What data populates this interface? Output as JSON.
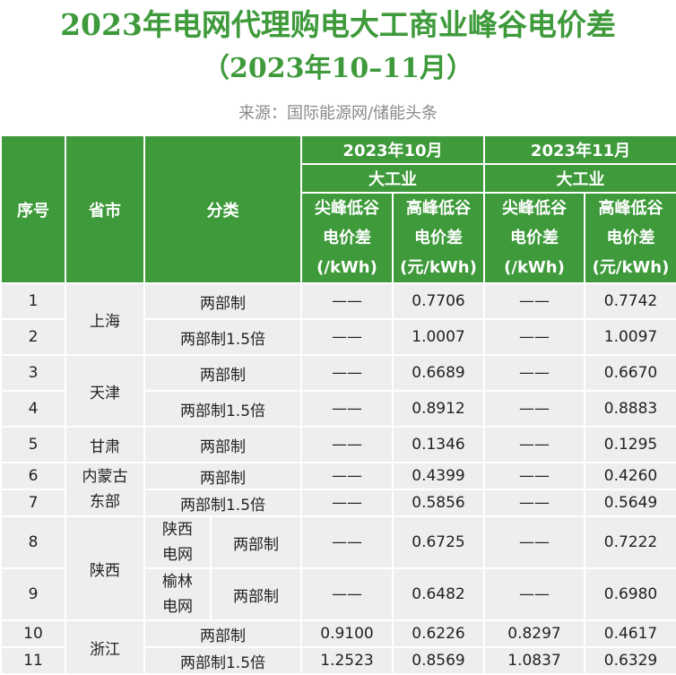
{
  "title": "2023年电网代理购电大工商业峰谷电价差",
  "subtitle": "（2023年10–11月）",
  "source": "来源：国际能源网/储能头条",
  "header": {
    "seq": "序号",
    "province": "省市",
    "category": "分类",
    "oct_month": "2023年10月",
    "nov_month": "2023年11月",
    "industry": "大工业",
    "peak_top": [
      "尖峰低谷",
      "电价差",
      "(/kWh)"
    ],
    "peak_high": [
      "高峰低谷",
      "电价差",
      "(元/kWh)"
    ]
  },
  "provinces": {
    "shanghai": "上海",
    "tianjin": "天津",
    "gansu": "甘肃",
    "neimenggu": "内蒙古",
    "dongbu": "东部",
    "shaanxi": "陕西",
    "zhejiang": "浙江"
  },
  "sub_regions": {
    "shaanxi_grid": [
      "陕西",
      "电网"
    ],
    "yulin_grid": [
      "榆林",
      "电网"
    ]
  },
  "rows": [
    {
      "no": "1",
      "category": "两部制",
      "oct_top": "——",
      "oct_high": "0.7706",
      "nov_top": "——",
      "nov_high": "0.7742"
    },
    {
      "no": "2",
      "category": "两部制1.5倍",
      "oct_top": "——",
      "oct_high": "1.0007",
      "nov_top": "——",
      "nov_high": "1.0097"
    },
    {
      "no": "3",
      "category": "两部制",
      "oct_top": "——",
      "oct_high": "0.6689",
      "nov_top": "——",
      "nov_high": "0.6670"
    },
    {
      "no": "4",
      "category": "两部制1.5倍",
      "oct_top": "——",
      "oct_high": "0.8912",
      "nov_top": "——",
      "nov_high": "0.8883"
    },
    {
      "no": "5",
      "category": "两部制",
      "oct_top": "——",
      "oct_high": "0.1346",
      "nov_top": "——",
      "nov_high": "0.1295"
    },
    {
      "no": "6",
      "category": "两部制",
      "oct_top": "——",
      "oct_high": "0.4399",
      "nov_top": "——",
      "nov_high": "0.4260"
    },
    {
      "no": "7",
      "category": "两部制1.5倍",
      "oct_top": "——",
      "oct_high": "0.5856",
      "nov_top": "——",
      "nov_high": "0.5649"
    },
    {
      "no": "8",
      "category": "两部制",
      "oct_top": "——",
      "oct_high": "0.6725",
      "nov_top": "——",
      "nov_high": "0.7222"
    },
    {
      "no": "9",
      "category": "两部制",
      "oct_top": "——",
      "oct_high": "0.6482",
      "nov_top": "——",
      "nov_high": "0.6980"
    },
    {
      "no": "10",
      "category": "两部制",
      "oct_top": "0.9100",
      "oct_high": "0.6226",
      "nov_top": "0.8297",
      "nov_high": "0.4617"
    },
    {
      "no": "11",
      "category": "两部制1.5倍",
      "oct_top": "1.2523",
      "oct_high": "0.8569",
      "nov_top": "1.0837",
      "nov_high": "0.6329"
    }
  ]
}
